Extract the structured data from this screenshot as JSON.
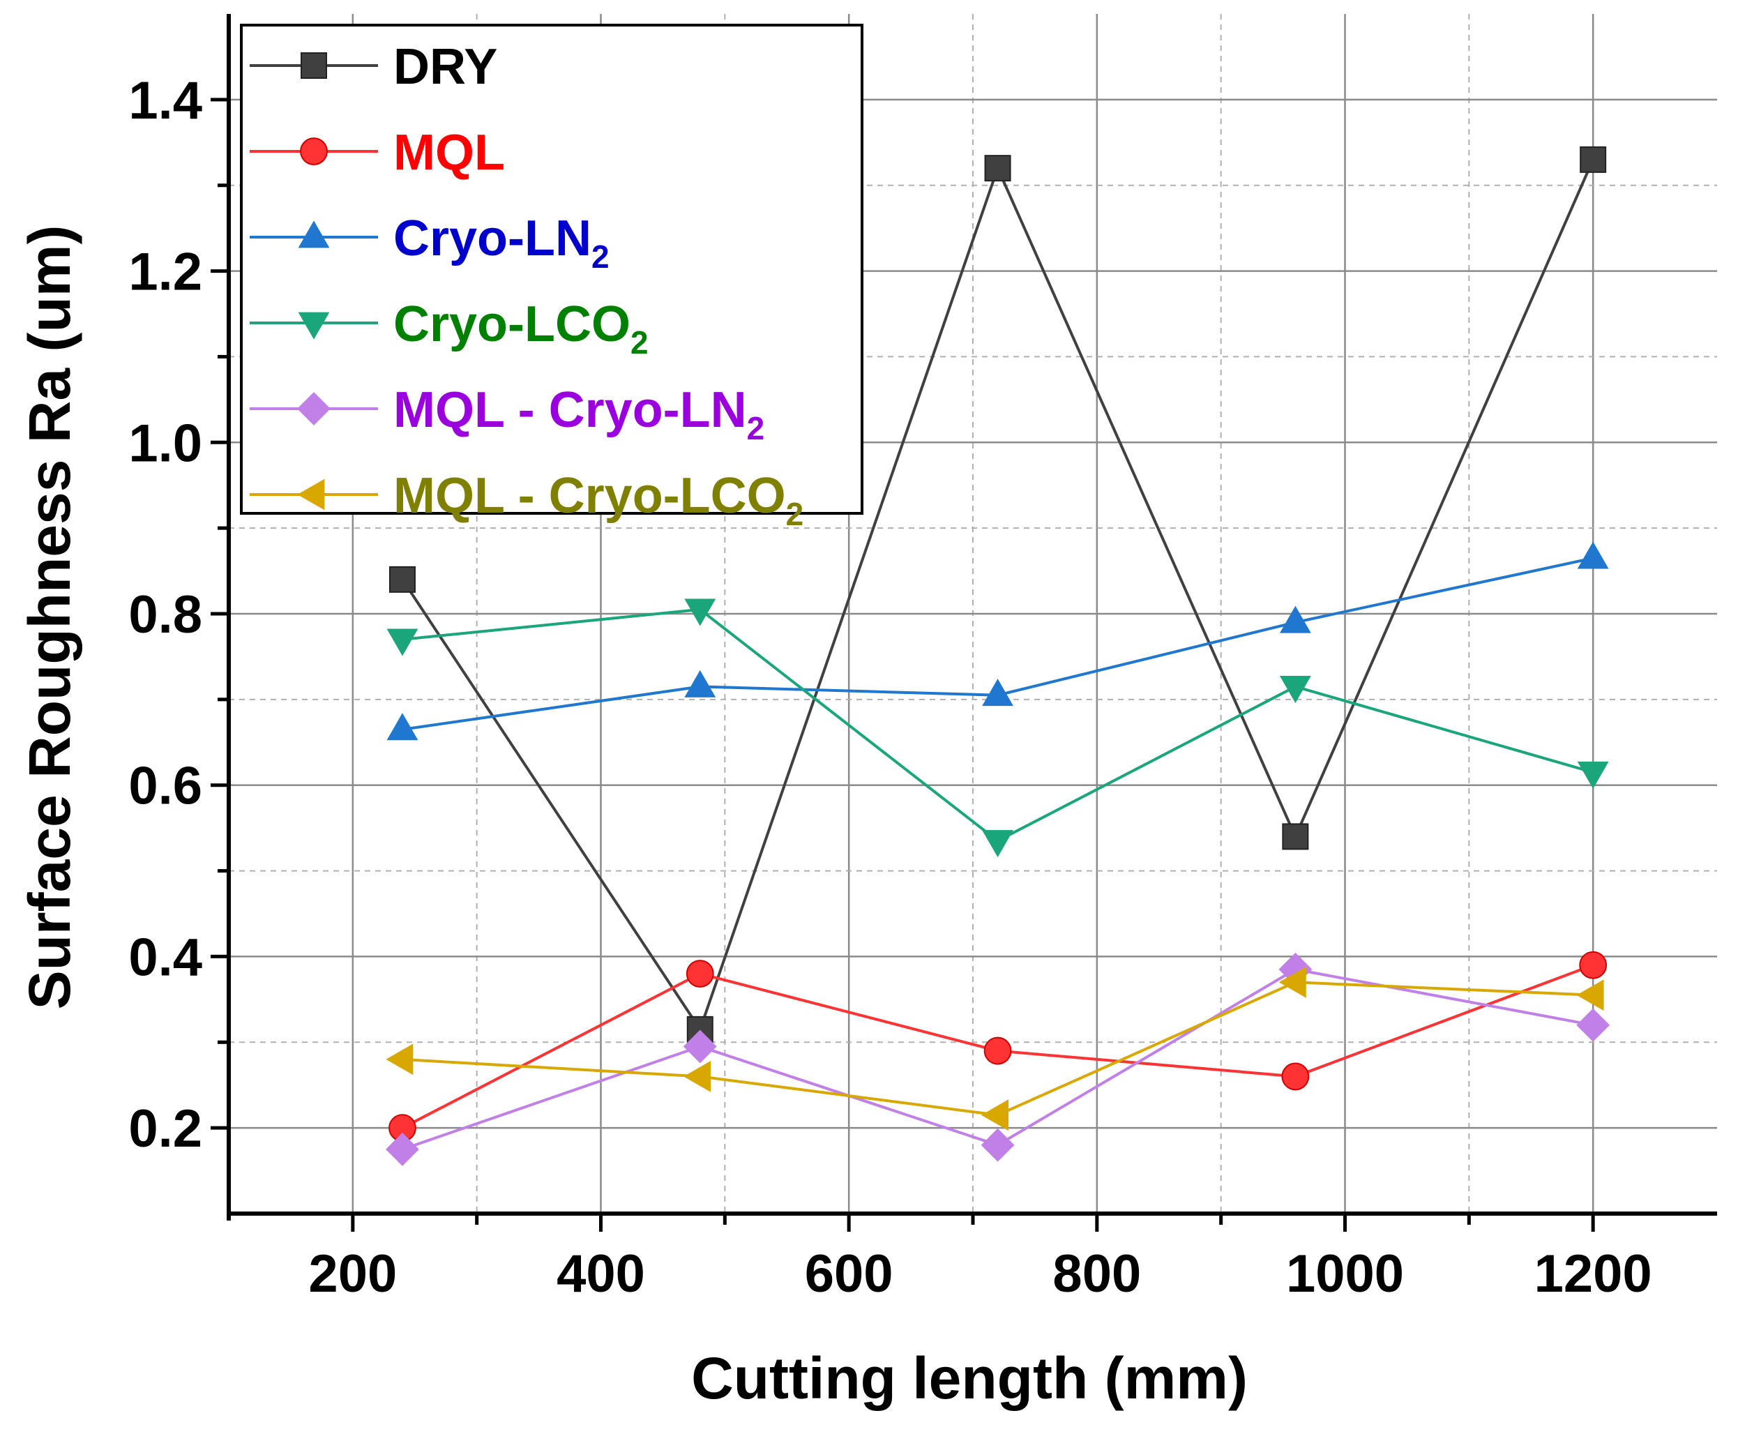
{
  "chart_data": {
    "type": "line",
    "title": "",
    "xlabel": "Cutting length (mm)",
    "ylabel": "Surface Roughness Ra (um)",
    "xlim": [
      100,
      1300
    ],
    "ylim": [
      0.1,
      1.5
    ],
    "x_ticks": [
      200,
      400,
      600,
      800,
      1000,
      1200
    ],
    "x_tick_labels": [
      "200",
      "400",
      "600",
      "800",
      "1000",
      "1200"
    ],
    "y_ticks": [
      0.2,
      0.4,
      0.6,
      0.8,
      1.0,
      1.2,
      1.4
    ],
    "y_tick_labels": [
      "0.2",
      "0.4",
      "0.6",
      "0.8",
      "1.0",
      "1.2",
      "1.4"
    ],
    "grid": true,
    "legend_position": "top-left",
    "x": [
      240,
      480,
      720,
      960,
      1200
    ],
    "series": [
      {
        "name": "DRY",
        "label_main": "DRY",
        "label_sub": "",
        "label_tail": "",
        "color": "#404040",
        "text_color": "#000000",
        "marker": "square",
        "values": [
          0.84,
          0.315,
          1.32,
          0.54,
          1.33
        ]
      },
      {
        "name": "MQL",
        "label_main": "MQL",
        "label_sub": "",
        "label_tail": "",
        "color": "#ff3333",
        "text_color": "#ff0000",
        "marker": "circle",
        "values": [
          0.2,
          0.38,
          0.29,
          0.26,
          0.39
        ]
      },
      {
        "name": "Cryo-LN2",
        "label_main": "Cryo-LN",
        "label_sub": "2",
        "label_tail": "",
        "color": "#1f77d0",
        "text_color": "#0000cc",
        "marker": "triangle-up",
        "values": [
          0.665,
          0.715,
          0.705,
          0.79,
          0.865
        ]
      },
      {
        "name": "Cryo-LCO2",
        "label_main": "Cryo-LCO",
        "label_sub": "2",
        "label_tail": "",
        "color": "#1aa67a",
        "text_color": "#008000",
        "marker": "triangle-down",
        "values": [
          0.77,
          0.805,
          0.535,
          0.715,
          0.615
        ]
      },
      {
        "name": "MQL - Cryo-LN2",
        "label_main": "MQL - Cryo-LN",
        "label_sub": "2",
        "label_tail": "",
        "color": "#c080e8",
        "text_color": "#9900dd",
        "marker": "diamond",
        "values": [
          0.175,
          0.295,
          0.18,
          0.385,
          0.32
        ]
      },
      {
        "name": "MQL - Cryo-LCO2",
        "label_main": "MQL - Cryo-LCO",
        "label_sub": "2",
        "label_tail": "",
        "color": "#d9a800",
        "text_color": "#808000",
        "marker": "triangle-left",
        "values": [
          0.28,
          0.26,
          0.215,
          0.37,
          0.355
        ]
      }
    ]
  }
}
